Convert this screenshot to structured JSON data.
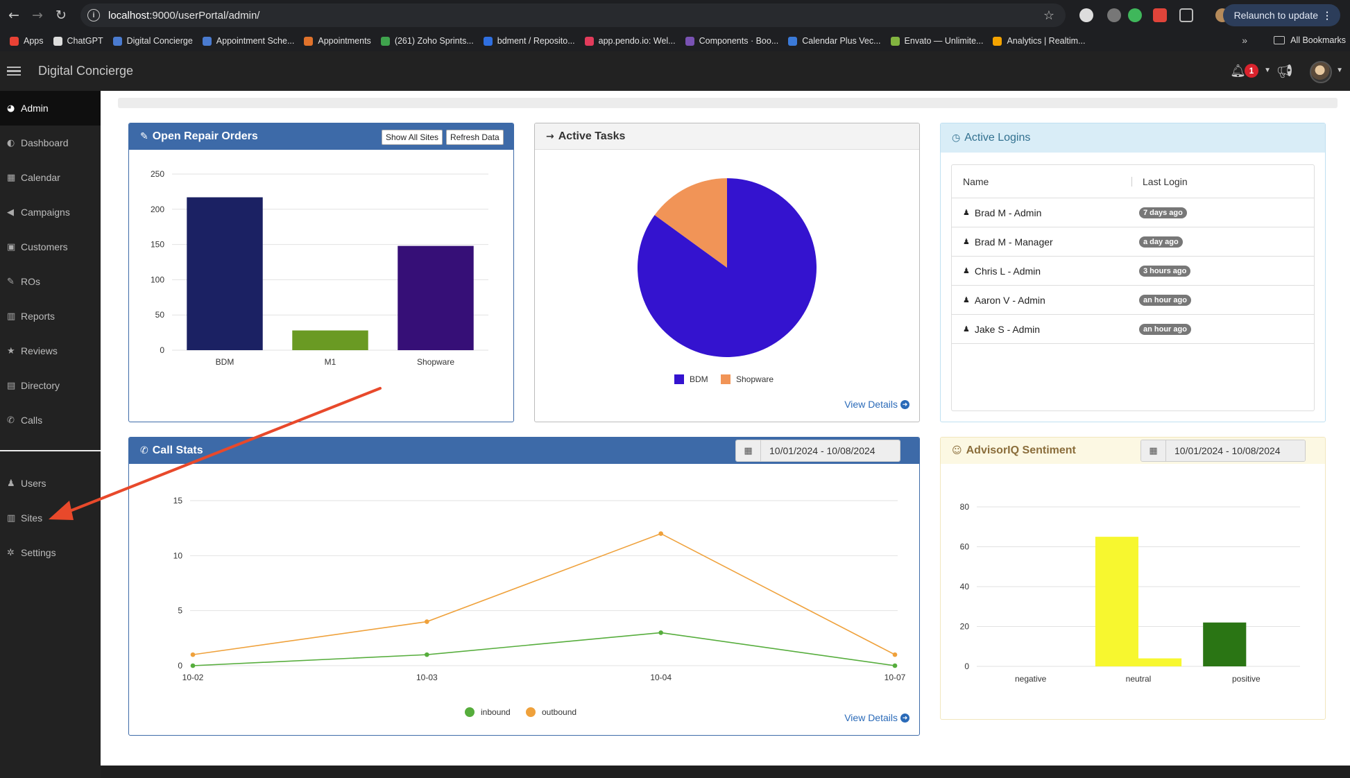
{
  "browser": {
    "url_host": "localhost",
    "url_path": ":9000/userPortal/admin/",
    "relaunch_label": "Relaunch to update",
    "bookmarks": [
      {
        "label": "Apps",
        "color": "#e94235"
      },
      {
        "label": "ChatGPT",
        "color": "#dddddd"
      },
      {
        "label": "Digital Concierge",
        "color": "#4a7bd0"
      },
      {
        "label": "Appointment Sche...",
        "color": "#4a7bd0"
      },
      {
        "label": "Appointments",
        "color": "#e0722b"
      },
      {
        "label": "(261) Zoho Sprints...",
        "color": "#3fa34d"
      },
      {
        "label": "bdment / Reposito...",
        "color": "#2f6fe0"
      },
      {
        "label": "app.pendo.io: Wel...",
        "color": "#e23b5b"
      },
      {
        "label": "Components · Boo...",
        "color": "#7952b3"
      },
      {
        "label": "Calendar Plus Vec...",
        "color": "#3b7ad8"
      },
      {
        "label": "Envato — Unlimite...",
        "color": "#82b440"
      },
      {
        "label": "Analytics | Realtim...",
        "color": "#f4a300"
      }
    ],
    "bookmarks_more": "»",
    "all_bookmarks": "All Bookmarks"
  },
  "app": {
    "title": "Digital Concierge",
    "notification_count": "1"
  },
  "sidebar": {
    "items": [
      {
        "label": "Admin",
        "icon": "dashboard-icon",
        "glyph": "◕"
      },
      {
        "label": "Dashboard",
        "icon": "palette-icon",
        "glyph": "◐"
      },
      {
        "label": "Calendar",
        "icon": "calendar-icon",
        "glyph": "▦"
      },
      {
        "label": "Campaigns",
        "icon": "bullhorn-icon",
        "glyph": "◀"
      },
      {
        "label": "Customers",
        "icon": "contact-card-icon",
        "glyph": "▣"
      },
      {
        "label": "ROs",
        "icon": "wrench-icon",
        "glyph": "✎"
      },
      {
        "label": "Reports",
        "icon": "bar-chart-icon",
        "glyph": "▥"
      },
      {
        "label": "Reviews",
        "icon": "star-icon",
        "glyph": "★"
      },
      {
        "label": "Directory",
        "icon": "book-icon",
        "glyph": "▤"
      },
      {
        "label": "Calls",
        "icon": "phone-icon",
        "glyph": "✆"
      }
    ],
    "bottom_items": [
      {
        "label": "Users",
        "icon": "users-icon",
        "glyph": "♟"
      },
      {
        "label": "Sites",
        "icon": "building-icon",
        "glyph": "▥"
      },
      {
        "label": "Settings",
        "icon": "gear-icon",
        "glyph": "✲"
      }
    ]
  },
  "panels": {
    "repair_orders": {
      "title": "Open Repair Orders",
      "show_all_label": "Show All Sites",
      "refresh_label": "Refresh Data"
    },
    "active_tasks": {
      "title": "Active Tasks",
      "view_details": "View Details"
    },
    "active_logins": {
      "title": "Active Logins",
      "col_name": "Name",
      "col_last_login": "Last Login",
      "rows": [
        {
          "name": "Brad M - Admin",
          "last": "7 days ago"
        },
        {
          "name": "Brad M - Manager",
          "last": "a day ago"
        },
        {
          "name": "Chris L - Admin",
          "last": "3 hours ago"
        },
        {
          "name": "Aaron V - Admin",
          "last": "an hour ago"
        },
        {
          "name": "Jake S - Admin",
          "last": "an hour ago"
        }
      ]
    },
    "call_stats": {
      "title": "Call Stats",
      "date_range": "10/01/2024 - 10/08/2024",
      "view_details": "View Details"
    },
    "sentiment": {
      "title": "AdvisorIQ Sentiment",
      "date_range": "10/01/2024 - 10/08/2024"
    }
  },
  "chart_data": [
    {
      "id": "repair_orders",
      "type": "bar",
      "categories": [
        "BDM",
        "M1",
        "Shopware"
      ],
      "values": [
        217,
        28,
        148
      ],
      "colors": [
        "#1b2163",
        "#6a9a23",
        "#360f77"
      ],
      "ylim": [
        0,
        250
      ],
      "yticks": [
        0,
        50,
        100,
        150,
        200,
        250
      ],
      "grid": true
    },
    {
      "id": "active_tasks",
      "type": "pie",
      "labels": [
        "BDM",
        "Shopware"
      ],
      "values": [
        85,
        15
      ],
      "colors": [
        "#3413cf",
        "#f19457"
      ],
      "legend": "bottom"
    },
    {
      "id": "call_stats",
      "type": "line",
      "x": [
        "10-02",
        "10-03",
        "10-04",
        "10-07"
      ],
      "series": [
        {
          "name": "inbound",
          "values": [
            0,
            1,
            3,
            0
          ],
          "color": "#56ad3c"
        },
        {
          "name": "outbound",
          "values": [
            1,
            4,
            12,
            1
          ],
          "color": "#efa13b"
        }
      ],
      "ylim": [
        0,
        15
      ],
      "yticks": [
        0,
        5,
        10,
        15
      ],
      "grid": true,
      "legend": "bottom"
    },
    {
      "id": "sentiment",
      "type": "bar",
      "categories": [
        "negative",
        "neutral",
        "positive"
      ],
      "series": [
        {
          "values": [
            0,
            65,
            22
          ],
          "colors": [
            "#f7f72f",
            "#f7f72f",
            "#2a7514"
          ]
        },
        {
          "values": [
            0,
            4,
            0
          ],
          "colors": [
            "#f7f72f",
            "#f7f72f",
            "#2a7514"
          ]
        }
      ],
      "ylim": [
        0,
        80
      ],
      "yticks": [
        0,
        20,
        40,
        60,
        80
      ],
      "grid": true
    }
  ],
  "annotation": {
    "description": "red arrow pointing to Sites menu item",
    "color": "#e8492b"
  }
}
